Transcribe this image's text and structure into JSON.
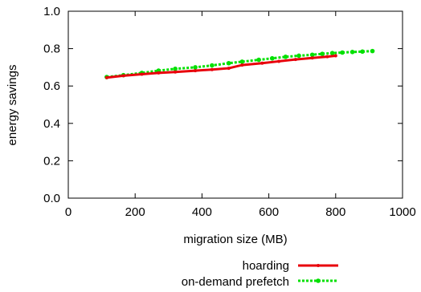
{
  "chart_data": {
    "type": "line",
    "title": "",
    "xlabel": "migration size (MB)",
    "ylabel": "energy savings",
    "xlim": [
      0,
      1000
    ],
    "ylim": [
      0.0,
      1.0
    ],
    "xticks": [
      0,
      200,
      400,
      600,
      800,
      1000
    ],
    "yticks": [
      0.0,
      0.2,
      0.4,
      0.6,
      0.8,
      1.0
    ],
    "xtick_labels": [
      "0",
      "200",
      "400",
      "600",
      "800",
      "1000"
    ],
    "ytick_labels": [
      "0.0",
      "0.2",
      "0.4",
      "0.6",
      "0.8",
      "1.0"
    ],
    "grid": false,
    "legend_position": "bottom-right, below plot",
    "series": [
      {
        "name": "hoarding",
        "color": "#e8000b",
        "line_style": "solid",
        "marker": "small-dot",
        "x": [
          115,
          165,
          220,
          270,
          320,
          380,
          430,
          480,
          520,
          580,
          630,
          680,
          730,
          775,
          800
        ],
        "y": [
          0.645,
          0.655,
          0.663,
          0.67,
          0.675,
          0.682,
          0.688,
          0.695,
          0.712,
          0.722,
          0.732,
          0.742,
          0.75,
          0.757,
          0.762
        ]
      },
      {
        "name": "on-demand prefetch",
        "color": "#00e000",
        "line_style": "dotted",
        "marker": "filled-circle",
        "x": [
          115,
          165,
          220,
          270,
          320,
          380,
          430,
          480,
          520,
          570,
          610,
          650,
          690,
          730,
          760,
          790,
          820,
          850,
          880,
          910
        ],
        "y": [
          0.648,
          0.658,
          0.67,
          0.682,
          0.692,
          0.7,
          0.71,
          0.722,
          0.73,
          0.74,
          0.748,
          0.756,
          0.762,
          0.767,
          0.772,
          0.776,
          0.779,
          0.782,
          0.784,
          0.787
        ]
      }
    ]
  }
}
